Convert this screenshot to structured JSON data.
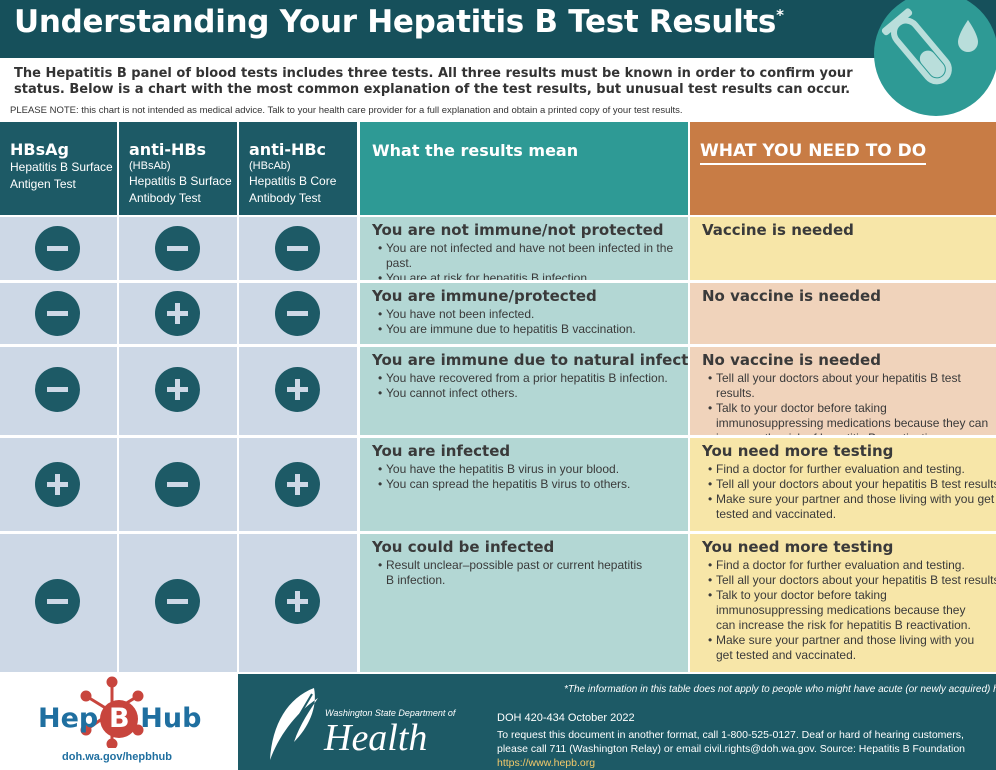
{
  "header": {
    "title": "Understanding Your Hepatitis B Test Results",
    "title_mark": "*"
  },
  "intro": {
    "text": "The Hepatitis B panel of blood tests includes three tests. All three results must be known in order to confirm your status. Below is a chart with the most common explanation of the test results, but unusual test results can occur.",
    "note": "PLEASE NOTE: this chart is not intended as medical advice. Talk to your health care provider for a full explanation and obtain a printed copy of your test results."
  },
  "columns": {
    "tests": [
      {
        "abbr": "HBsAg",
        "alt": "",
        "desc1": "Hepatitis B Surface",
        "desc2": "Antigen Test"
      },
      {
        "abbr": "anti-HBs",
        "alt": "(HBsAb)",
        "desc1": "Hepatitis B Surface",
        "desc2": "Antibody Test"
      },
      {
        "abbr": "anti-HBc",
        "alt": "(HBcAb)",
        "desc1": "Hepatitis B Core",
        "desc2": "Antibody Test"
      }
    ],
    "meaning": "What the results mean",
    "action": "WHAT YOU NEED TO DO"
  },
  "rows": [
    {
      "results": [
        "-",
        "-",
        "-"
      ],
      "meaning_title": "You are not immune/not protected",
      "meaning_bullets": [
        "You are not infected and have not been infected in the past.",
        "You are at risk for hepatitis B infection."
      ],
      "action_title": "Vaccine is needed",
      "action_bullets": []
    },
    {
      "results": [
        "-",
        "+",
        "-"
      ],
      "meaning_title": "You are immune/protected",
      "meaning_bullets": [
        "You have not been infected.",
        "You are immune due to hepatitis B vaccination."
      ],
      "action_title": "No vaccine is needed",
      "action_bullets": []
    },
    {
      "results": [
        "-",
        "+",
        "+"
      ],
      "meaning_title": "You are immune due to natural infection",
      "meaning_bullets": [
        "You have recovered from a prior hepatitis B infection.",
        "You cannot infect others."
      ],
      "action_title": "No vaccine is needed",
      "action_bullets": [
        "Tell all your doctors about your hepatitis B test results.",
        "Talk to your doctor before taking immunosuppressing medications because they can increase the risk of hepatitis B reactivation."
      ]
    },
    {
      "results": [
        "+",
        "-",
        "+"
      ],
      "meaning_title": "You are infected",
      "meaning_bullets": [
        "You have the hepatitis B virus in your blood.",
        "You can spread the hepatitis B virus to others."
      ],
      "action_title": "You need more testing",
      "action_bullets": [
        "Find a doctor for further evaluation and testing.",
        "Tell all your doctors about your hepatitis B test results.",
        "Make sure your partner and those living with you get tested and vaccinated."
      ]
    },
    {
      "results": [
        "-",
        "-",
        "+"
      ],
      "meaning_title": "You could be infected",
      "meaning_bullets": [
        "Result unclear–possible past or current hepatitis B infection."
      ],
      "action_title": "You need more testing",
      "action_bullets": [
        "Find a doctor for further evaluation and testing.",
        "Tell all your doctors about your hepatitis B test results.",
        "Talk to your doctor before taking immunosuppressing medications because they can increase the risk for hepatitis B reactivation.",
        "Make sure your partner and those living with you get tested and vaccinated."
      ]
    }
  ],
  "footer": {
    "hep_hub": {
      "pre": "Hep",
      "b": "B",
      "post": "Hub",
      "url": "doh.wa.gov/hepbhub"
    },
    "disclaimer": "*The information in this table does not apply to people who might have acute (or newly acquired) hepatitis B.",
    "doh_small": "Washington State Department of",
    "doh_big": "Health",
    "doc_id": "DOH 420-434 October 2022",
    "doc_info": "To request this document in another format, call 1-800-525-0127. Deaf or hard of hearing customers, please call 711 (Washington Relay) or email civil.rights@doh.wa.gov. Source: Hepatitis B Foundation",
    "doc_link": "https://www.hepb.org"
  },
  "colors": {
    "header": "#16505b",
    "teal": "#2e9a95",
    "orange": "#c87c45",
    "test_bg": "#cdd8e6",
    "meaning_bg": "#b3d7d4",
    "yellow": "#f7e6a8",
    "peach": "#f0d3bb"
  },
  "icons": [
    "test-tube-icon",
    "drop-icon",
    "minus-icon",
    "plus-icon",
    "virus-icon",
    "feather-icon"
  ]
}
